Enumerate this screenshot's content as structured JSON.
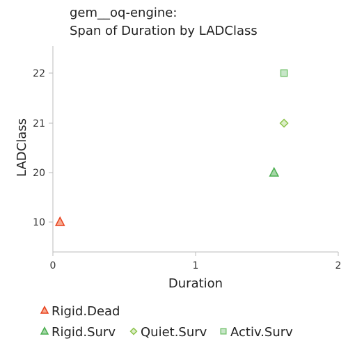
{
  "chart_data": {
    "type": "scatter",
    "title": [
      "gem__oq-engine:",
      "Span of Duration by LADClass"
    ],
    "xlabel": "Duration",
    "ylabel": "LADClass",
    "xlim": [
      0,
      2
    ],
    "x_ticks": [
      "0",
      "1",
      "2"
    ],
    "y_ticks": [
      "10",
      "20",
      "21",
      "22"
    ],
    "legend_placement": "bottom",
    "series": [
      {
        "name": "Rigid.Dead",
        "marker": "triangle",
        "color": "#e8401c",
        "fill": "#f7a98f",
        "points": [
          {
            "x": 0.05,
            "y": "10"
          }
        ]
      },
      {
        "name": "Rigid.Surv",
        "marker": "triangle",
        "color": "#4caf50",
        "fill": "#a5d6a7",
        "points": [
          {
            "x": 1.55,
            "y": "20"
          }
        ]
      },
      {
        "name": "Quiet.Surv",
        "marker": "diamond",
        "color": "#8bc34a",
        "fill": "#dcedc8",
        "points": [
          {
            "x": 1.62,
            "y": "21"
          }
        ]
      },
      {
        "name": "Activ.Surv",
        "marker": "square",
        "color": "#7cc576",
        "fill": "#c8e6c9",
        "points": [
          {
            "x": 1.62,
            "y": "22"
          }
        ]
      }
    ]
  }
}
